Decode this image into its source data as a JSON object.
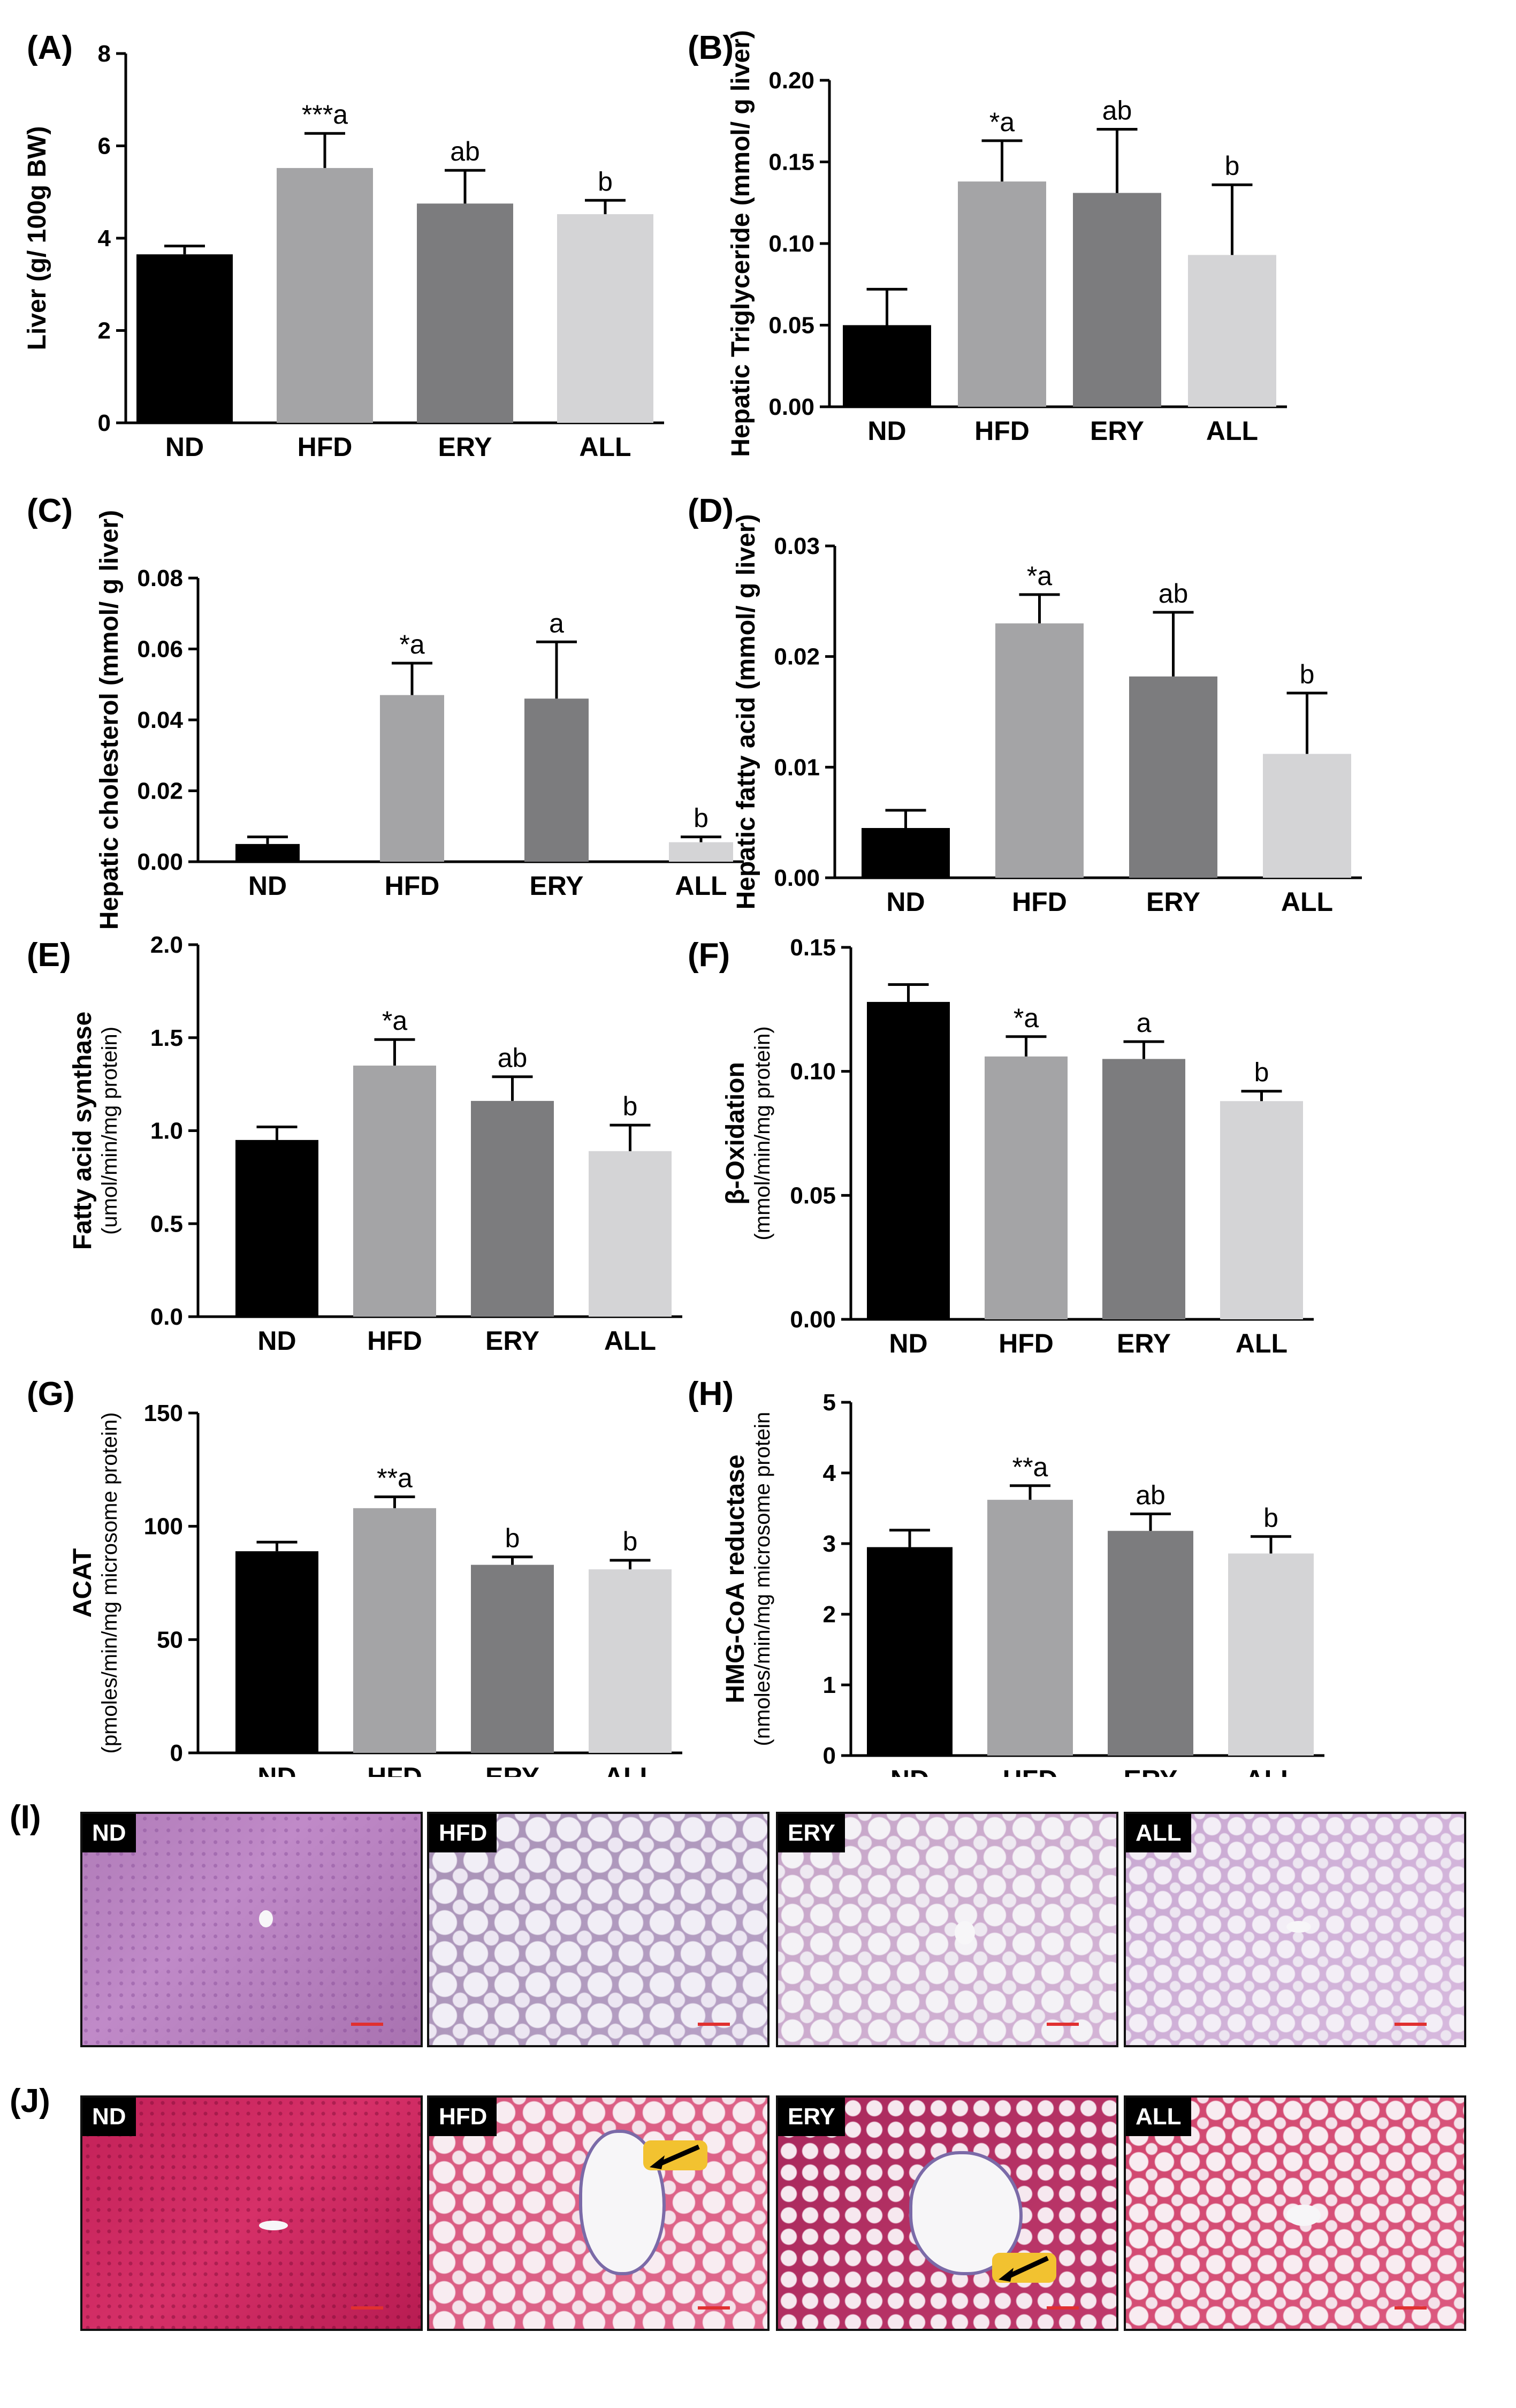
{
  "chart_data": [
    {
      "panel": "(A)",
      "type": "bar",
      "ylabel": "Liver (g/ 100g BW)",
      "categories": [
        "ND",
        "HFD",
        "ERY",
        "ALL"
      ],
      "values": [
        3.65,
        5.52,
        4.75,
        4.52
      ],
      "errors": [
        0.18,
        0.75,
        0.72,
        0.3
      ],
      "significance": [
        "",
        "***a",
        "ab",
        "b"
      ],
      "ylim": [
        0,
        8
      ],
      "yticks": [
        "0",
        "2",
        "4",
        "6",
        "8"
      ]
    },
    {
      "panel": "(B)",
      "type": "bar",
      "ylabel": "Hepatic Triglyceride (mmol/ g liver)",
      "categories": [
        "ND",
        "HFD",
        "ERY",
        "ALL"
      ],
      "values": [
        0.05,
        0.138,
        0.131,
        0.093
      ],
      "errors": [
        0.022,
        0.025,
        0.039,
        0.043
      ],
      "significance": [
        "",
        "*a",
        "ab",
        "b"
      ],
      "ylim": [
        0,
        0.2
      ],
      "yticks": [
        "0.00",
        "0.05",
        "0.10",
        "0.15",
        "0.20"
      ]
    },
    {
      "panel": "(C)",
      "type": "bar",
      "ylabel": "Hepatic cholesterol (mmol/ g liver)",
      "categories": [
        "ND",
        "HFD",
        "ERY",
        "ALL"
      ],
      "values": [
        0.005,
        0.047,
        0.046,
        0.0055
      ],
      "errors": [
        0.002,
        0.009,
        0.016,
        0.0015
      ],
      "significance": [
        "",
        "*a",
        "a",
        "b"
      ],
      "ylim": [
        0,
        0.08
      ],
      "yticks": [
        "0.00",
        "0.02",
        "0.04",
        "0.06",
        "0.08"
      ]
    },
    {
      "panel": "(D)",
      "type": "bar",
      "ylabel": "Hepatic fatty acid (mmol/ g liver)",
      "categories": [
        "ND",
        "HFD",
        "ERY",
        "ALL"
      ],
      "values": [
        0.0045,
        0.023,
        0.0182,
        0.0112
      ],
      "errors": [
        0.0016,
        0.0026,
        0.0058,
        0.0055
      ],
      "significance": [
        "",
        "*a",
        "ab",
        "b"
      ],
      "ylim": [
        0,
        0.03
      ],
      "yticks": [
        "0.00",
        "0.01",
        "0.02",
        "0.03"
      ]
    },
    {
      "panel": "(E)",
      "type": "bar",
      "ylabel": "Fatty acid synthase",
      "ylabel2": "(umol/min/mg protein)",
      "categories": [
        "ND",
        "HFD",
        "ERY",
        "ALL"
      ],
      "values": [
        0.95,
        1.35,
        1.16,
        0.89
      ],
      "errors": [
        0.07,
        0.14,
        0.13,
        0.14
      ],
      "significance": [
        "",
        "*a",
        "ab",
        "b"
      ],
      "ylim": [
        0,
        2.0
      ],
      "yticks": [
        "0.0",
        "0.5",
        "1.0",
        "1.5",
        "2.0"
      ]
    },
    {
      "panel": "(F)",
      "type": "bar",
      "ylabel": "β-Oxidation",
      "ylabel2": "(mmol/min/mg protein)",
      "categories": [
        "ND",
        "HFD",
        "ERY",
        "ALL"
      ],
      "values": [
        0.128,
        0.106,
        0.105,
        0.088
      ],
      "errors": [
        0.007,
        0.008,
        0.007,
        0.004
      ],
      "significance": [
        "",
        "*a",
        "a",
        "b"
      ],
      "ylim": [
        0,
        0.15
      ],
      "yticks": [
        "0.00",
        "0.05",
        "0.10",
        "0.15"
      ]
    },
    {
      "panel": "(G)",
      "type": "bar",
      "ylabel": "ACAT",
      "ylabel2": "(pmoles/min/mg microsome protein)",
      "categories": [
        "ND",
        "HFD",
        "ERY",
        "ALL"
      ],
      "values": [
        89,
        108,
        83,
        81
      ],
      "errors": [
        4,
        5,
        3.5,
        4
      ],
      "significance": [
        "",
        "**a",
        "b",
        "b"
      ],
      "ylim": [
        0,
        150
      ],
      "yticks": [
        "0",
        "50",
        "100",
        "150"
      ]
    },
    {
      "panel": "(H)",
      "type": "bar",
      "ylabel": "HMG-CoA reductase",
      "ylabel2": "(nmoles/min/mg microsome protein",
      "categories": [
        "ND",
        "HFD",
        "ERY",
        "ALL"
      ],
      "values": [
        2.95,
        3.62,
        3.18,
        2.86
      ],
      "errors": [
        0.24,
        0.2,
        0.24,
        0.24
      ],
      "significance": [
        "",
        "**a",
        "ab",
        "b"
      ],
      "ylim": [
        0,
        5
      ],
      "yticks": [
        "0",
        "1",
        "2",
        "3",
        "4",
        "5"
      ]
    }
  ],
  "bar_colors": [
    "#000000",
    "#a4a4a6",
    "#7c7c7e",
    "#d4d4d6"
  ],
  "histology": {
    "row_I": {
      "label": "(I)",
      "tags": [
        "ND",
        "HFD",
        "ERY",
        "ALL"
      ]
    },
    "row_J": {
      "label": "(J)",
      "tags": [
        "ND",
        "HFD",
        "ERY",
        "ALL"
      ]
    }
  }
}
